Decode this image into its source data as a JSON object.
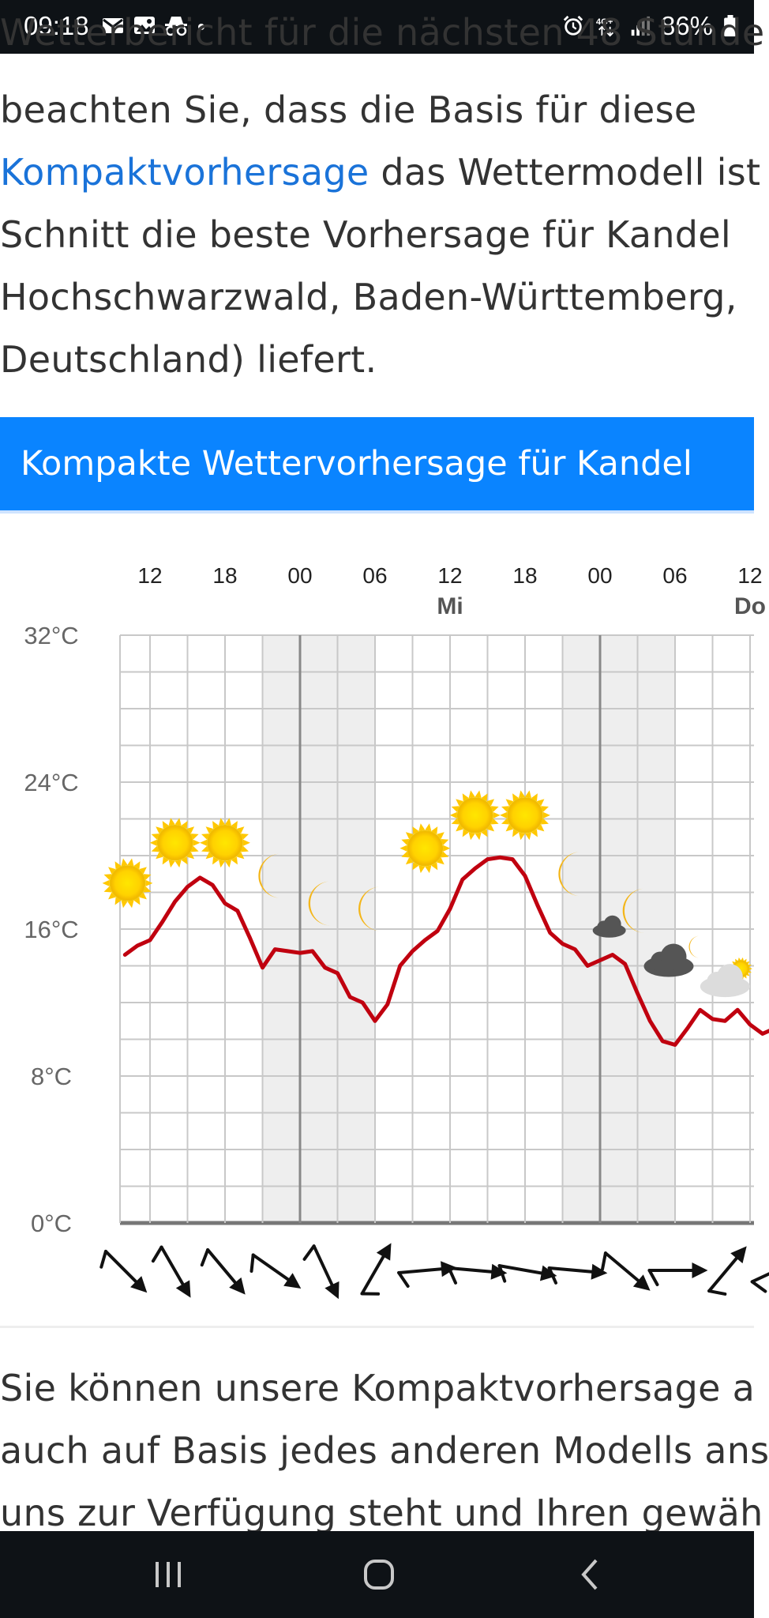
{
  "status_bar": {
    "time": "09:18",
    "battery": "86%",
    "network": "4G+",
    "left_icons": [
      "mail-icon",
      "image-icon",
      "incognito-icon",
      "dot-icon"
    ],
    "right_icons": [
      "alarm-icon",
      "network-4g-icon",
      "signal-icon",
      "battery-icon"
    ]
  },
  "article": {
    "lines": [
      {
        "text": "Wetterbericht für die nächsten 48 Stunde"
      },
      {
        "text": "beachten Sie, dass die Basis für diese"
      },
      {
        "link": "Kompaktvorhersage",
        "text": " das Wettermodell ist"
      },
      {
        "text": "Schnitt die beste Vorhersage für Kandel"
      },
      {
        "text": "Hochschwarzwald, Baden-Württemberg,"
      },
      {
        "text": "Deutschland) liefert."
      }
    ],
    "bottom_lines": [
      {
        "text": "Sie können unsere Kompaktvorhersage a"
      },
      {
        "text": "auch auf Basis jedes anderen Modells ans"
      },
      {
        "text": "uns zur Verfügung steht und Ihren gewäh"
      }
    ]
  },
  "forecast_header": {
    "title": "Kompakte Wettervorhersage für Kandel"
  },
  "chart_data": {
    "type": "line",
    "x_unit": "hours from Tue 12:00",
    "hour_labels": [
      {
        "h": 0,
        "label": "12"
      },
      {
        "h": 6,
        "label": "18"
      },
      {
        "h": 12,
        "label": "00"
      },
      {
        "h": 18,
        "label": "06"
      },
      {
        "h": 24,
        "label": "12"
      },
      {
        "h": 30,
        "label": "18"
      },
      {
        "h": 36,
        "label": "00"
      },
      {
        "h": 42,
        "label": "06"
      },
      {
        "h": 48,
        "label": "12"
      }
    ],
    "day_labels": [
      {
        "h": 24,
        "label": "Mi"
      },
      {
        "h": 48,
        "label": "Do"
      }
    ],
    "yticks": [
      0,
      8,
      16,
      24,
      32
    ],
    "ytick_labels": [
      "0°C",
      "8°C",
      "16°C",
      "24°C",
      "32°C"
    ],
    "ylim": [
      0,
      32
    ],
    "night_shading": [
      [
        9,
        18
      ],
      [
        33,
        42
      ]
    ],
    "series": [
      {
        "color": "#c0000f",
        "x": [
          -2,
          -1,
          0,
          1,
          2,
          3,
          4,
          5,
          6,
          7,
          8,
          9,
          10,
          11,
          12,
          13,
          14,
          15,
          16,
          17,
          18,
          19,
          20,
          21,
          22,
          23,
          24,
          25,
          26,
          27,
          28,
          29,
          30,
          31,
          32,
          33,
          34,
          35,
          36,
          37,
          38,
          39,
          40,
          41,
          42,
          43,
          44,
          45,
          46,
          47,
          48,
          49,
          50
        ],
        "values": [
          14.6,
          15.1,
          15.4,
          16.4,
          17.5,
          18.3,
          18.8,
          18.4,
          17.4,
          17.0,
          15.5,
          13.9,
          14.9,
          14.8,
          14.7,
          14.8,
          13.9,
          13.6,
          12.3,
          12.0,
          11.0,
          11.9,
          14.0,
          14.8,
          15.4,
          15.9,
          17.1,
          18.7,
          19.3,
          19.8,
          19.9,
          19.8,
          18.9,
          17.3,
          15.8,
          15.2,
          14.9,
          14.0,
          14.3,
          14.6,
          14.1,
          12.5,
          11.0,
          9.9,
          9.7,
          10.6,
          11.6,
          11.1,
          11.0,
          11.6,
          10.8,
          10.3,
          10.6
        ]
      }
    ],
    "weather_icons": [
      {
        "h": -1.8,
        "t": 18.5,
        "type": "sun"
      },
      {
        "h": 2.0,
        "t": 20.7,
        "type": "sun"
      },
      {
        "h": 6.0,
        "t": 20.7,
        "type": "sun"
      },
      {
        "h": 10.0,
        "t": 18.9,
        "type": "moon"
      },
      {
        "h": 14.0,
        "t": 17.4,
        "type": "moon"
      },
      {
        "h": 18.0,
        "t": 17.1,
        "type": "moon"
      },
      {
        "h": 22.0,
        "t": 20.4,
        "type": "sun"
      },
      {
        "h": 26.0,
        "t": 22.2,
        "type": "sun"
      },
      {
        "h": 30.0,
        "t": 22.2,
        "type": "sun"
      },
      {
        "h": 34.0,
        "t": 19.0,
        "type": "moon"
      },
      {
        "h": 38.0,
        "t": 17.0,
        "type": "moon-cloud"
      },
      {
        "h": 42.0,
        "t": 14.6,
        "type": "cloud-moon"
      },
      {
        "h": 46.0,
        "t": 13.5,
        "type": "cloud-sun"
      }
    ],
    "wind_directions_deg": [
      135,
      150,
      140,
      125,
      155,
      30,
      85,
      95,
      100,
      95,
      130,
      90,
      40,
      65
    ]
  },
  "nav_bar": {
    "buttons": [
      "recents-icon",
      "home-icon",
      "back-icon"
    ]
  }
}
